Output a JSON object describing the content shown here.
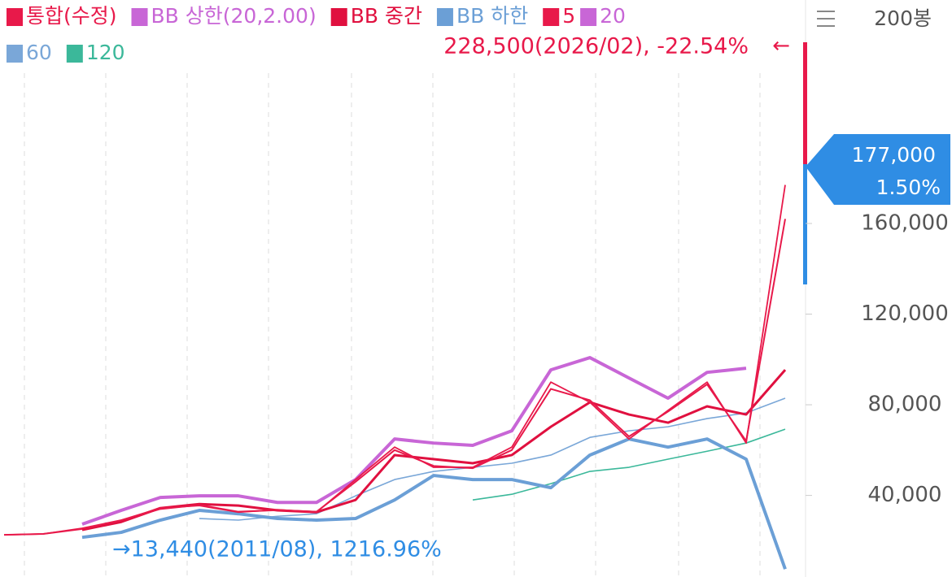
{
  "chart_data": {
    "type": "line",
    "series": [
      {
        "name": "통합(수정)",
        "color": "#e8194a",
        "width": 1.8,
        "values": [
          22600,
          23000,
          25500,
          29100,
          34400,
          35500,
          32600,
          33700,
          32600,
          47000,
          61300,
          52400,
          52400,
          61300,
          90000,
          81100,
          64900,
          77500,
          90000,
          63100,
          177000
        ]
      },
      {
        "name": "BB 상한(20,2.00)",
        "color": "#c866d6",
        "width": 4,
        "values": [
          null,
          null,
          27300,
          33400,
          39100,
          39800,
          39800,
          36900,
          36900,
          47000,
          64900,
          63100,
          62100,
          68500,
          95400,
          100800,
          91800,
          82900,
          94300,
          96100,
          null
        ]
      },
      {
        "name": "BB 중간",
        "color": "#e0103f",
        "width": 3,
        "values": [
          null,
          null,
          24800,
          28300,
          34400,
          36200,
          35500,
          33400,
          32600,
          38000,
          57800,
          56000,
          54200,
          57800,
          70300,
          81100,
          75700,
          72100,
          79300,
          75700,
          95400
        ]
      },
      {
        "name": "BB 하한",
        "color": "#6b9fd6",
        "width": 4,
        "values": [
          null,
          null,
          21500,
          23700,
          29100,
          33400,
          31900,
          29800,
          29100,
          29800,
          38000,
          48800,
          47000,
          47000,
          43400,
          57800,
          64900,
          61300,
          64900,
          56000,
          7500
        ]
      },
      {
        "name": "5",
        "color": "#e8194a",
        "width": 2,
        "values": [
          22600,
          23000,
          25200,
          29000,
          34000,
          35800,
          32800,
          33500,
          32800,
          46000,
          60000,
          53000,
          52000,
          60000,
          87000,
          82000,
          66000,
          77000,
          89000,
          64000,
          162000
        ]
      },
      {
        "name": "20",
        "color": "#c866d6",
        "width": 1.2,
        "values": [
          null,
          null,
          24800,
          28300,
          34400,
          36200,
          35500,
          33400,
          32600,
          38000,
          57800,
          56000,
          54200,
          57800,
          70300,
          81100,
          75700,
          72100,
          79300,
          75700,
          95400
        ]
      },
      {
        "name": "60",
        "color": "#7aa7d8",
        "width": 1.6,
        "values": [
          null,
          null,
          null,
          null,
          null,
          29800,
          29100,
          30800,
          31900,
          39800,
          47000,
          50600,
          52400,
          54200,
          57800,
          65600,
          68500,
          70300,
          73900,
          76400,
          82900
        ]
      },
      {
        "name": "120",
        "color": "#3bb89a",
        "width": 1.6,
        "values": [
          null,
          null,
          null,
          null,
          null,
          null,
          null,
          null,
          null,
          null,
          null,
          null,
          38000,
          40500,
          45200,
          50600,
          52400,
          56000,
          59500,
          63100,
          69200
        ]
      }
    ],
    "ylim": [
      4000,
      258600
    ],
    "yticks": [
      {
        "value": 40000,
        "label": "40,000"
      },
      {
        "value": 80000,
        "label": "80,000"
      },
      {
        "value": 120000,
        "label": "120,000"
      },
      {
        "value": 160000,
        "label": "160,000"
      }
    ],
    "high_annotation": {
      "text": "228,500(2026/02), -22.54%",
      "arrow": "←",
      "color": "#e8194a"
    },
    "low_annotation": {
      "text": "→13,440(2011/08), 1216.96%",
      "color": "#2f8de4"
    },
    "current_price": {
      "label": "177,000",
      "change": "1.50%",
      "color": "#2f8de4"
    },
    "period_label": "200봉"
  }
}
